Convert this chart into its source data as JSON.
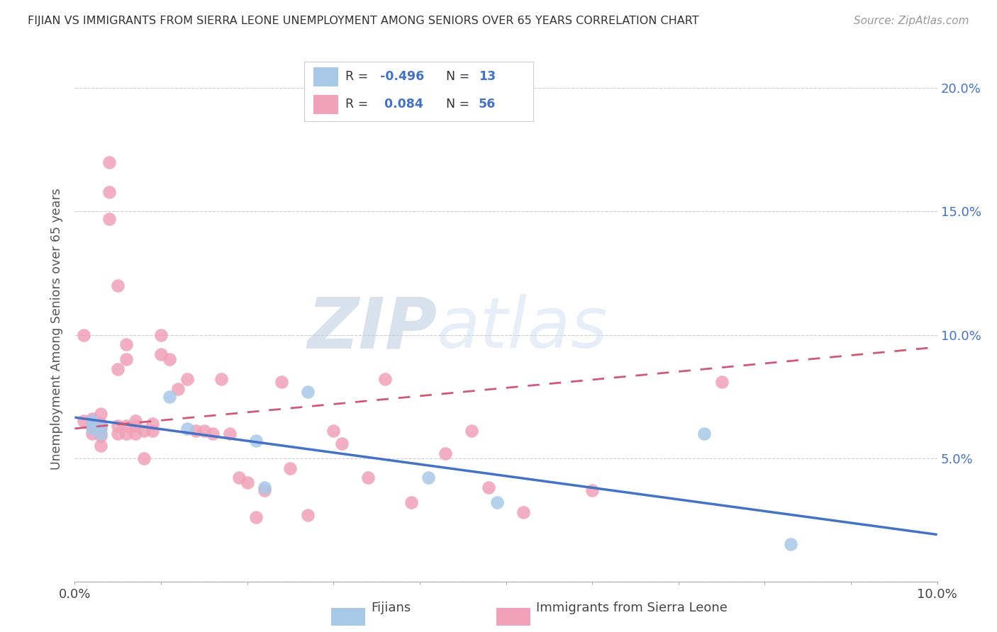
{
  "title": "FIJIAN VS IMMIGRANTS FROM SIERRA LEONE UNEMPLOYMENT AMONG SENIORS OVER 65 YEARS CORRELATION CHART",
  "source": "Source: ZipAtlas.com",
  "ylabel": "Unemployment Among Seniors over 65 years",
  "legend_label_fijians": "Fijians",
  "legend_label_sierra": "Immigrants from Sierra Leone",
  "legend_r_fijian": "-0.496",
  "legend_n_fijian": "13",
  "legend_r_sierra": "0.084",
  "legend_n_sierra": "56",
  "x_min": 0.0,
  "x_max": 0.1,
  "y_min": 0.0,
  "y_max": 0.205,
  "color_fijian": "#a8c8e8",
  "color_sierra": "#f0a0b8",
  "line_color_fijian": "#4472c4",
  "line_color_sierra": "#d05878",
  "watermark_zip": "ZIP",
  "watermark_atlas": "atlas",
  "fijian_x": [
    0.002,
    0.002,
    0.003,
    0.003,
    0.011,
    0.013,
    0.021,
    0.022,
    0.027,
    0.041,
    0.049,
    0.073,
    0.083
  ],
  "fijian_y": [
    0.065,
    0.062,
    0.063,
    0.06,
    0.075,
    0.062,
    0.057,
    0.038,
    0.077,
    0.042,
    0.032,
    0.06,
    0.015
  ],
  "sierra_x": [
    0.001,
    0.001,
    0.002,
    0.002,
    0.002,
    0.003,
    0.003,
    0.003,
    0.003,
    0.003,
    0.004,
    0.004,
    0.004,
    0.005,
    0.005,
    0.005,
    0.005,
    0.006,
    0.006,
    0.006,
    0.006,
    0.007,
    0.007,
    0.007,
    0.008,
    0.008,
    0.009,
    0.009,
    0.01,
    0.01,
    0.011,
    0.012,
    0.013,
    0.014,
    0.015,
    0.016,
    0.017,
    0.018,
    0.019,
    0.02,
    0.021,
    0.022,
    0.024,
    0.025,
    0.027,
    0.03,
    0.031,
    0.034,
    0.036,
    0.039,
    0.043,
    0.046,
    0.048,
    0.052,
    0.06,
    0.075
  ],
  "sierra_y": [
    0.1,
    0.065,
    0.066,
    0.063,
    0.06,
    0.068,
    0.064,
    0.062,
    0.059,
    0.055,
    0.17,
    0.158,
    0.147,
    0.12,
    0.086,
    0.063,
    0.06,
    0.096,
    0.09,
    0.063,
    0.06,
    0.065,
    0.063,
    0.06,
    0.061,
    0.05,
    0.064,
    0.061,
    0.1,
    0.092,
    0.09,
    0.078,
    0.082,
    0.061,
    0.061,
    0.06,
    0.082,
    0.06,
    0.042,
    0.04,
    0.026,
    0.037,
    0.081,
    0.046,
    0.027,
    0.061,
    0.056,
    0.042,
    0.082,
    0.032,
    0.052,
    0.061,
    0.038,
    0.028,
    0.037,
    0.081
  ],
  "trend_fijian_x0": 0.0,
  "trend_fijian_y0": 0.0665,
  "trend_fijian_x1": 0.1,
  "trend_fijian_y1": 0.019,
  "trend_sierra_x0": 0.0,
  "trend_sierra_y0": 0.062,
  "trend_sierra_x1": 0.1,
  "trend_sierra_y1": 0.095
}
